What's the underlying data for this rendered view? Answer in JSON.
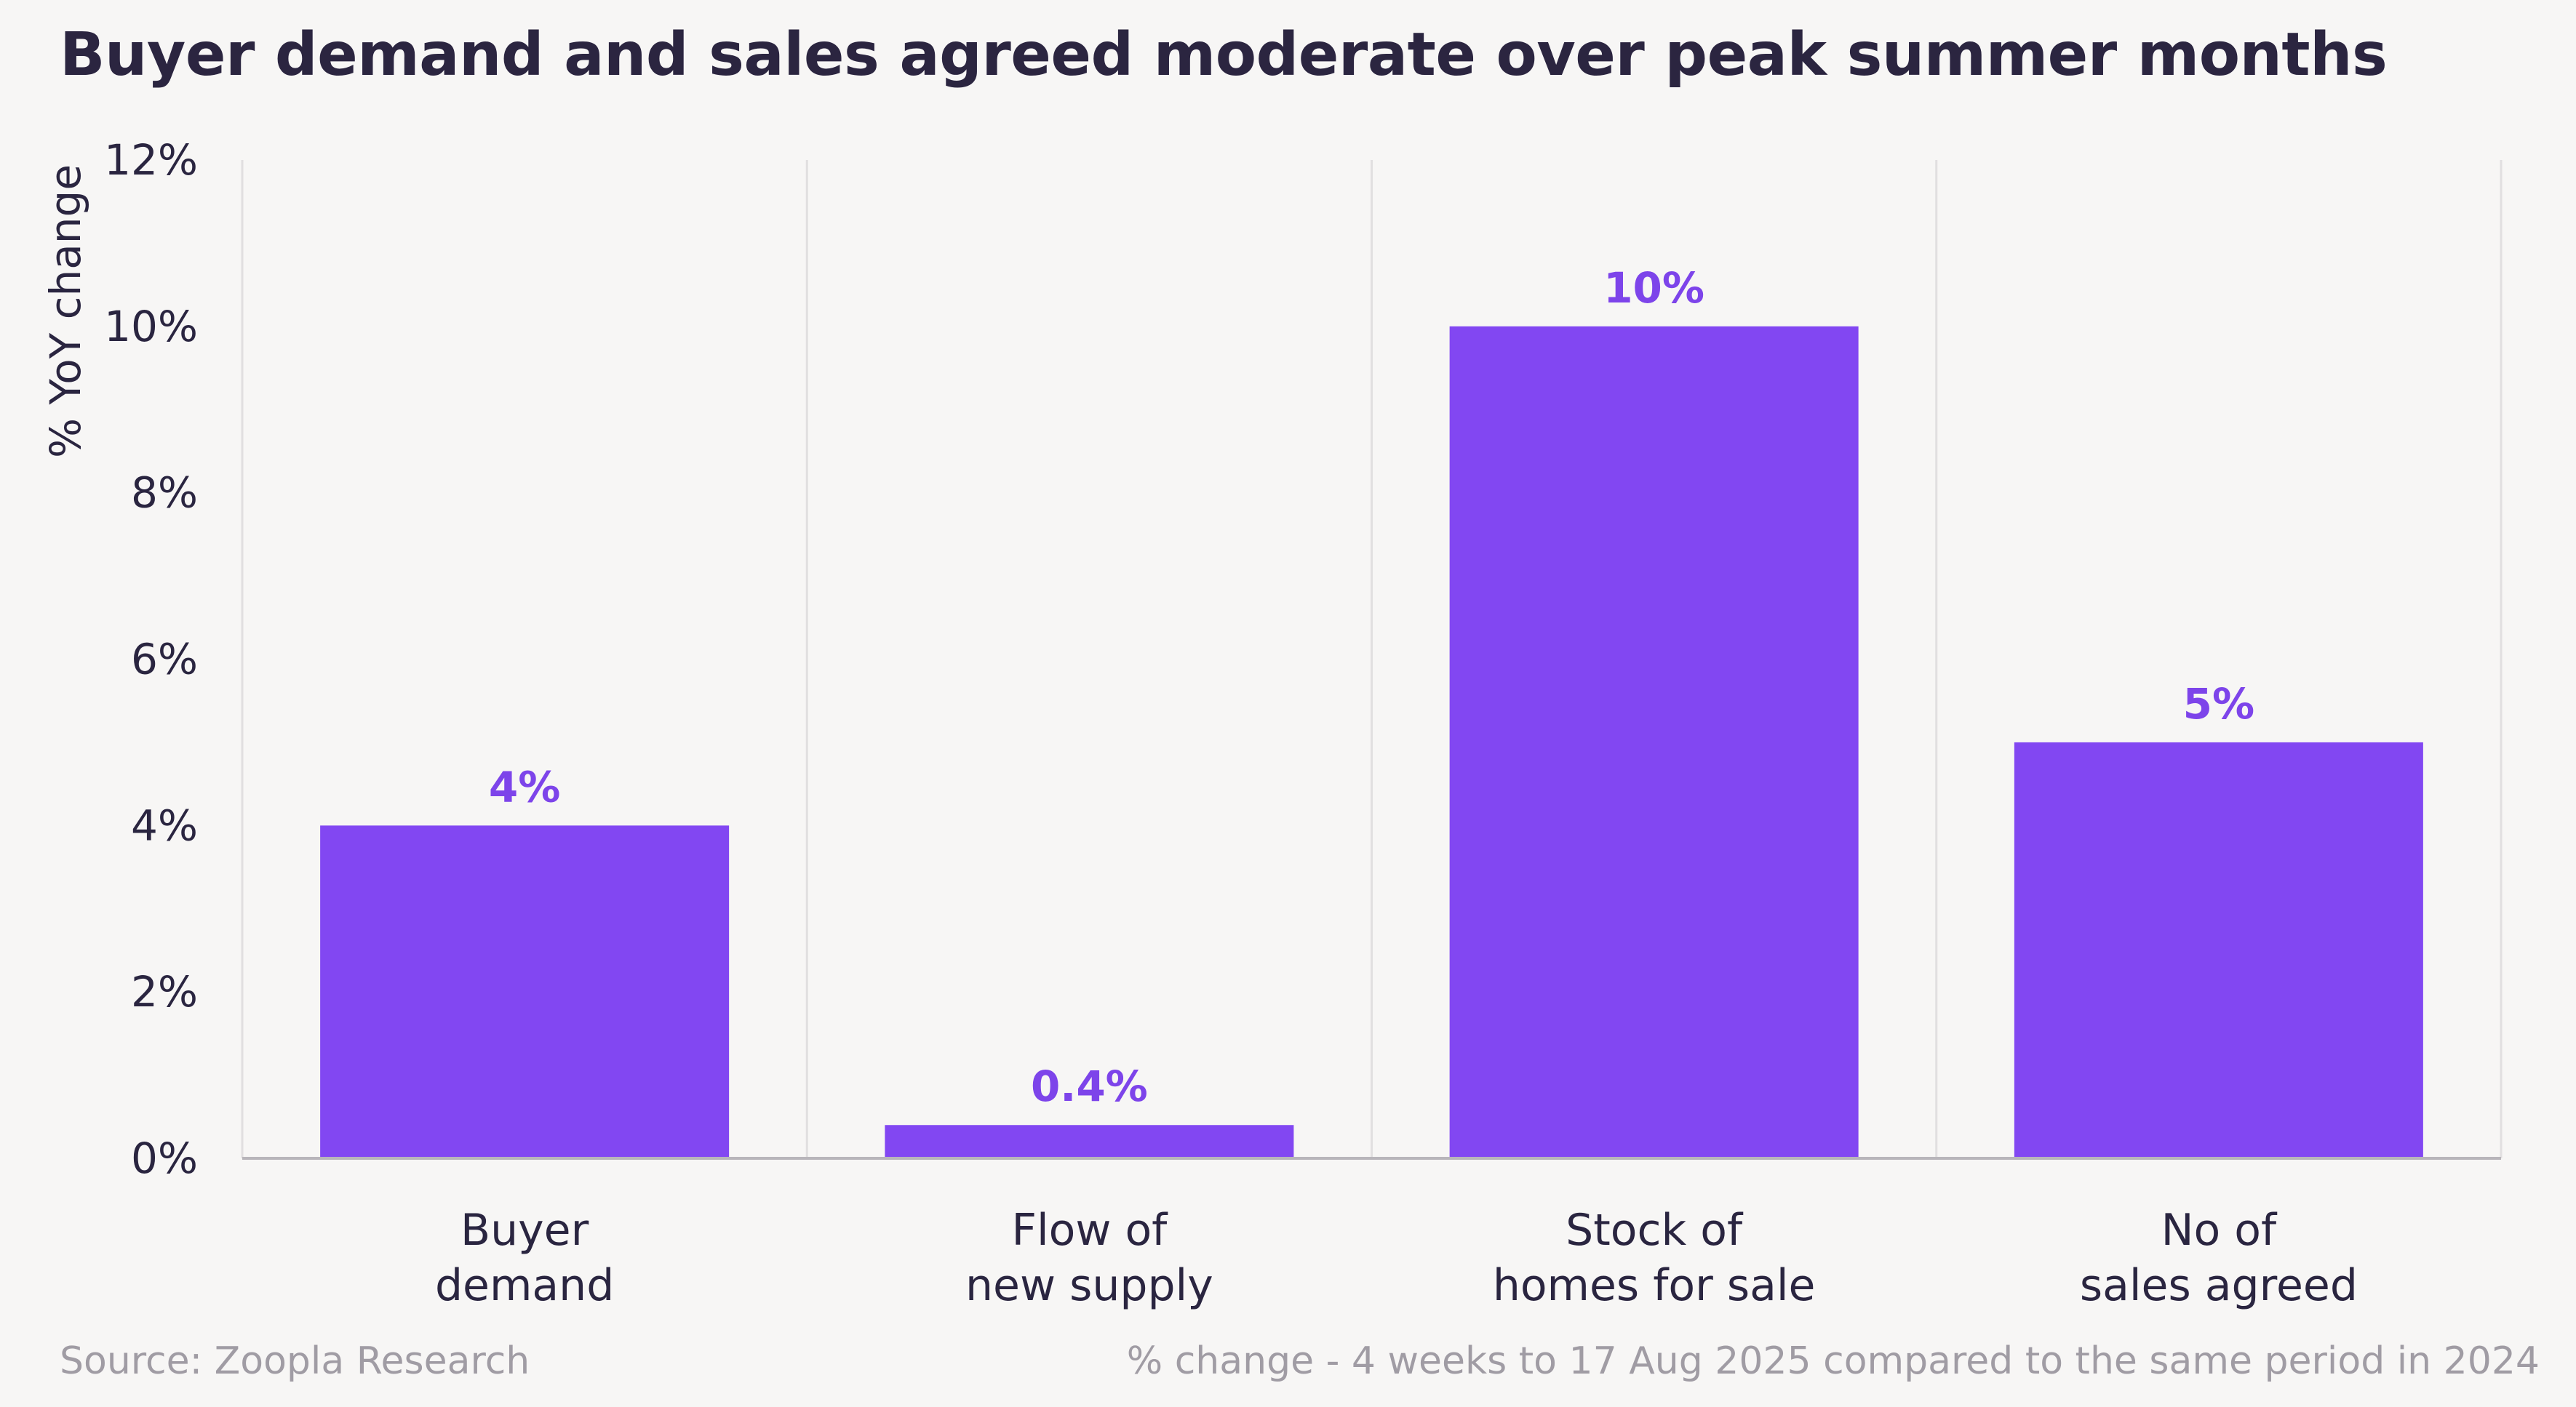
{
  "chart_data": {
    "type": "bar",
    "title": "Buyer demand and sales agreed moderate over peak summer months",
    "ylabel": "% YoY change",
    "xlabel": "",
    "ylim": [
      0,
      12
    ],
    "yticks": [
      0,
      2,
      4,
      6,
      8,
      10,
      12
    ],
    "ytick_labels": [
      "0%",
      "2%",
      "4%",
      "6%",
      "8%",
      "10%",
      "12%"
    ],
    "categories": [
      [
        "Buyer",
        "demand"
      ],
      [
        "Flow of",
        "new supply"
      ],
      [
        "Stock of",
        "homes for sale"
      ],
      [
        "No of",
        "sales agreed"
      ]
    ],
    "values": [
      4,
      0.4,
      10,
      5
    ],
    "data_labels": [
      "4%",
      "0.4%",
      "10%",
      "5%"
    ],
    "bar_color": "#8247f2",
    "label_color": "#7d44ea",
    "grid": "vertical-separators"
  },
  "footer": {
    "source": "Source: Zoopla Research",
    "note": "% change - 4 weeks to 17 Aug 2025 compared to the same period in 2024"
  }
}
